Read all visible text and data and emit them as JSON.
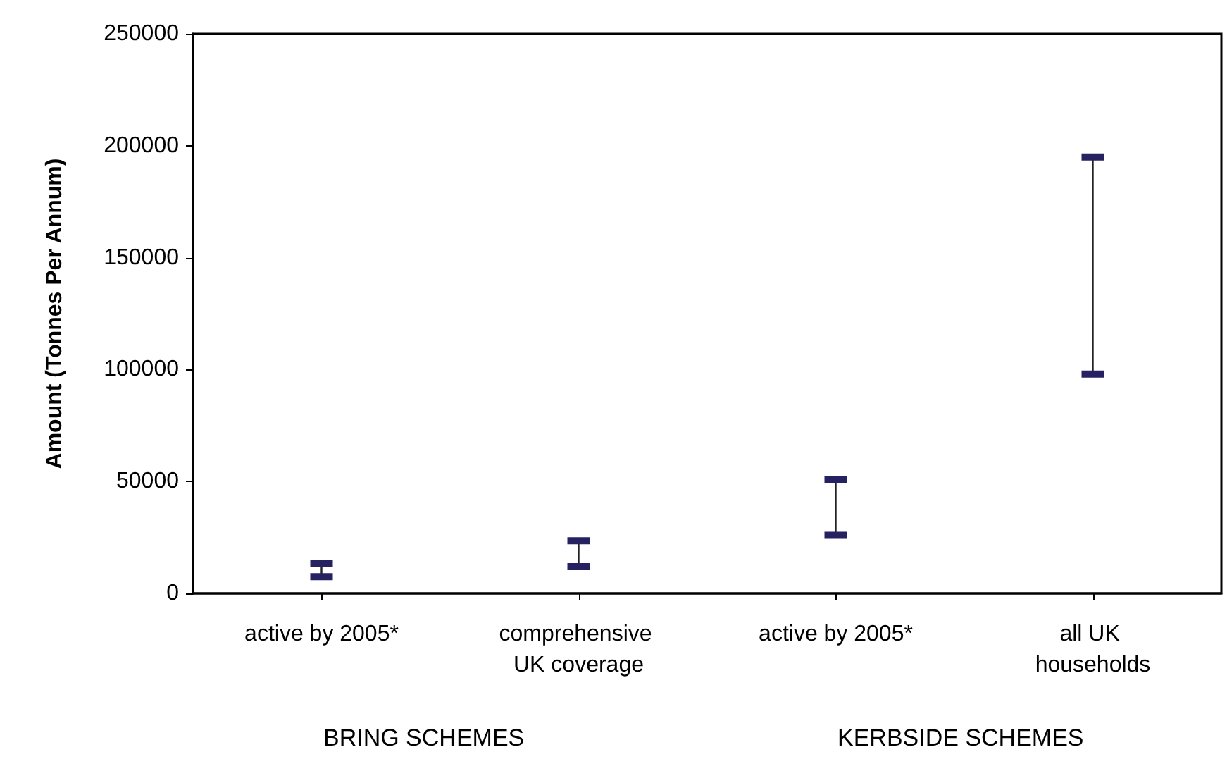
{
  "chart_data": {
    "type": "bar",
    "ylabel": "Amount (Tonnes Per Annum)",
    "categories": [
      "active by 2005*",
      "comprehensive UK coverage",
      "active by 2005*",
      "all UK households"
    ],
    "series": [
      {
        "color": "#222222",
        "base": [
          7500,
          12000,
          26000,
          98000
        ],
        "values": [
          6000,
          11500,
          25000,
          97000
        ]
      },
      {
        "type": "scatter",
        "color": "#262262",
        "values": [
          13500,
          23500,
          51000,
          195000
        ]
      },
      {
        "type": "scatter",
        "color": "#262262",
        "values": [
          7500,
          12000,
          26000,
          98000
        ]
      }
    ],
    "marker": "square",
    "ylim": [
      0,
      250000
    ],
    "yticks": [
      0,
      50000,
      100000,
      150000,
      200000,
      250000
    ],
    "grid": false,
    "annotations": [
      "BRING SCHEMES",
      "KERBSIDE SCHEMES"
    ]
  }
}
